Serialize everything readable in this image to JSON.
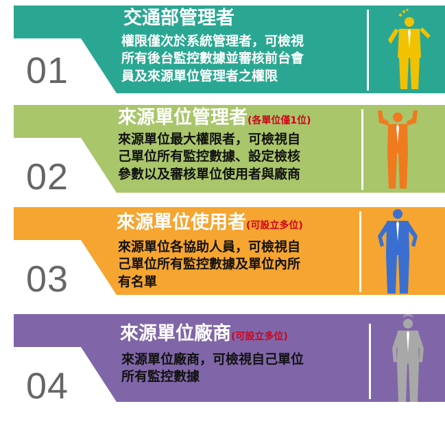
{
  "colors": {
    "card1": "#2aa792",
    "card2": "#a9c66b",
    "card3": "#f5a530",
    "card4": "#8066a8",
    "number_text": "#666666",
    "note_red": "#d0021b"
  },
  "cards": [
    {
      "number": "01",
      "title": "交通部管理者",
      "note": "",
      "lines": [
        "權限僅次於系統管理者，可檢視",
        "所有後台監控數據並審核前台會",
        "員及來源單位管理者之權限"
      ],
      "figure_icon": "thinking-man-icon",
      "figure_color": "#f2c200"
    },
    {
      "number": "02",
      "title": "來源單位管理者",
      "note": "(各單位僅1位)",
      "lines": [
        "來源單位最大權限者，可檢視自",
        "己單位所有監控數據、設定檢核",
        "參數以及審核單位使用者與廠商"
      ],
      "figure_icon": "strong-man-icon",
      "figure_color": "#f07a1e"
    },
    {
      "number": "03",
      "title": "來源單位使用者",
      "note": "(可設立多位)",
      "lines": [
        "來源單位各協助人員，可檢視自",
        "己單位所有監控數據及單位內所",
        "有名單"
      ],
      "figure_icon": "standing-man-icon",
      "figure_color": "#3a6fd1"
    },
    {
      "number": "04",
      "title": "來源單位廠商",
      "note": "(可設立多位)",
      "lines": [
        "來源單位廠商，可檢視自己單位",
        "所有監控數據"
      ],
      "figure_icon": "confused-man-icon",
      "figure_color": "#a8a8a8"
    }
  ]
}
